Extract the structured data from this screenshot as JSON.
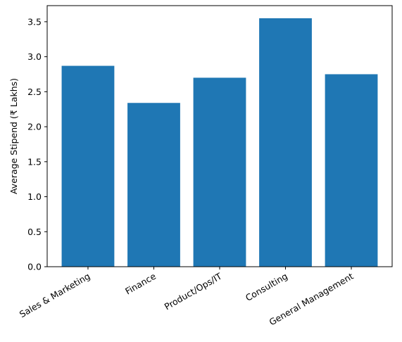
{
  "chart_data": {
    "type": "bar",
    "categories": [
      "Sales & Marketing",
      "Finance",
      "Product/Ops/IT",
      "Consulting",
      "General Management"
    ],
    "values": [
      2.87,
      2.34,
      2.7,
      3.55,
      2.75
    ],
    "title": "",
    "xlabel": "",
    "ylabel": "Average Stipend (₹ Lakhs)",
    "ylim": [
      0,
      3.73
    ],
    "yticks": [
      "0.0",
      "0.5",
      "1.0",
      "1.5",
      "2.0",
      "2.5",
      "3.0",
      "3.5"
    ],
    "bar_color": "#1f77b4",
    "grid": false,
    "legend": "none"
  }
}
